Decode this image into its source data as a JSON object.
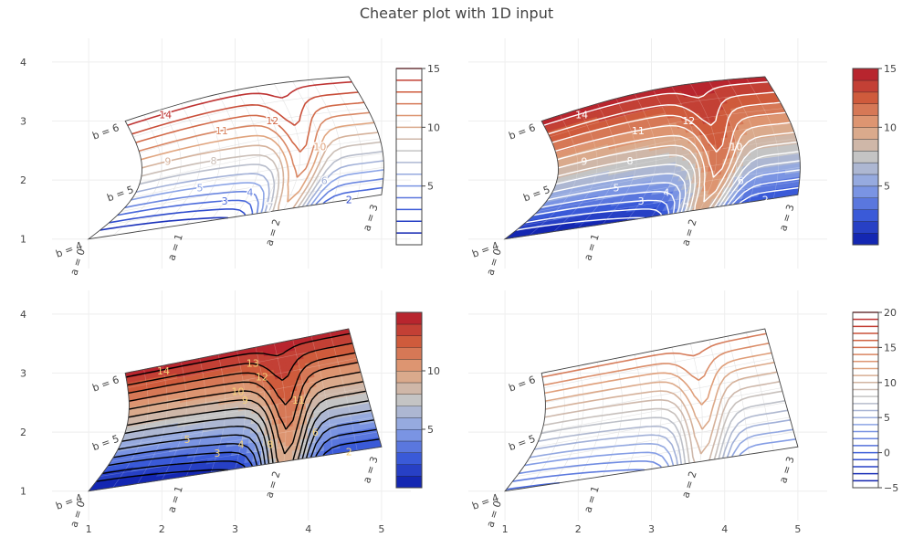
{
  "colors": {
    "scale": [
      "#0a1aa8",
      "#3a5ad8",
      "#8aa3e6",
      "#c4c4c4",
      "#e0a47e",
      "#cf5b3c",
      "#b2182b"
    ]
  },
  "chart_data": {
    "title": "Cheater plot with 1D input",
    "type": "contour",
    "carpet": {
      "a": [
        0,
        1,
        2,
        3
      ],
      "b": [
        4,
        5,
        6
      ],
      "a_axis_labels": [
        "a = 0",
        "a = 1",
        "a = 2",
        "a = 3"
      ],
      "b_axis_labels": [
        "b = 4",
        "b = 5",
        "b = 6"
      ]
    },
    "x_ticks": [
      1,
      2,
      3,
      4,
      5
    ],
    "y_ticks": [
      1,
      2,
      3,
      4
    ],
    "panels": [
      {
        "id": "top-left",
        "coloring": "lines",
        "smooth": true,
        "contour_labels": [
          "14",
          "12",
          "11",
          "10",
          "9",
          "8",
          "7",
          "6",
          "5",
          "4",
          "3",
          "2"
        ],
        "colorbar_ticks": [
          "15",
          "10",
          "5"
        ],
        "colorbar_range": [
          0,
          15
        ],
        "colorbar_style": "lines"
      },
      {
        "id": "top-right",
        "coloring": "fill",
        "smooth": true,
        "contour_labels": [
          "14",
          "12",
          "11",
          "10",
          "9",
          "8",
          "7",
          "6",
          "5",
          "4",
          "3",
          "2"
        ],
        "colorbar_ticks": [
          "15",
          "10",
          "5"
        ],
        "colorbar_range": [
          0,
          15
        ],
        "colorbar_style": "fill"
      },
      {
        "id": "bottom-left",
        "coloring": "fill",
        "smooth": false,
        "contour_labels": [
          "14",
          "13",
          "12",
          "11",
          "10",
          "9",
          "8",
          "6",
          "5",
          "4",
          "3",
          "2"
        ],
        "colorbar_ticks": [
          "10",
          "5"
        ],
        "colorbar_range": [
          0,
          15
        ],
        "colorbar_style": "fill"
      },
      {
        "id": "bottom-right",
        "coloring": "lines",
        "smooth": false,
        "contour_labels": [],
        "colorbar_ticks": [
          "20",
          "15",
          "10",
          "5",
          "0",
          "−5"
        ],
        "colorbar_range": [
          -5,
          20
        ],
        "colorbar_style": "lines"
      }
    ]
  }
}
